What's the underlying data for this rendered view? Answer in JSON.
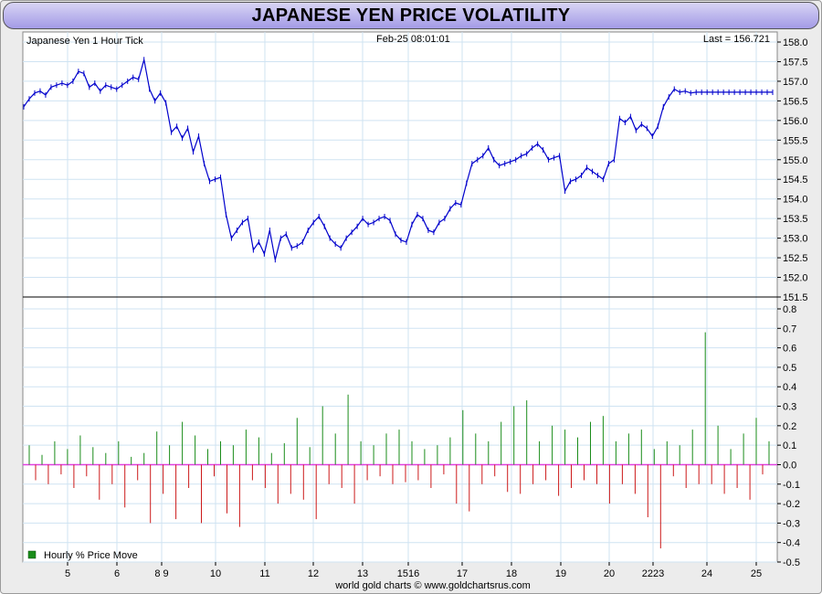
{
  "title": "JAPANESE YEN PRICE VOLATILITY",
  "footer": "world gold charts © www.goldchartsrus.com",
  "colors": {
    "price_line": "#0000cc",
    "up_bar": "#1a8c1a",
    "down_bar": "#cc1a1a",
    "zero_line": "#e040e0",
    "grid": "#cfe3f2",
    "title_bg": "#b0a8ec"
  },
  "chart_data": [
    {
      "type": "line",
      "title": "Japanese Yen 1 Hour Tick",
      "timestamp": "Feb-25  08:01:01",
      "last_label": "Last = 156.721",
      "y_ticks": [
        "158.0",
        "157.5",
        "157.0",
        "156.5",
        "156.0",
        "155.5",
        "155.0",
        "154.5",
        "154.0",
        "153.5",
        "153.0",
        "152.5",
        "152.0",
        "151.5"
      ],
      "ylim": [
        151.5,
        158.0
      ],
      "grid": true,
      "series": [
        {
          "x": [
            0,
            6,
            12,
            18,
            24,
            30,
            36,
            42,
            48,
            54,
            60,
            66,
            72,
            78,
            84,
            90,
            96,
            102,
            108,
            114,
            120,
            126,
            132,
            138,
            144,
            150,
            156,
            162,
            168,
            174,
            180,
            186,
            192,
            198,
            204,
            210,
            216,
            222,
            228,
            234,
            240,
            246,
            252,
            258,
            264,
            270,
            276,
            282,
            288,
            294,
            300,
            306,
            312,
            318,
            324,
            330,
            336,
            342,
            348,
            354,
            360,
            366,
            372,
            378,
            384,
            390,
            396,
            402,
            408,
            414,
            420,
            426,
            432,
            438,
            444,
            450,
            456,
            462,
            468,
            474,
            480,
            486,
            492,
            498,
            504,
            510,
            516,
            522,
            528,
            534,
            540,
            546,
            552,
            558,
            564,
            570,
            576,
            582,
            588,
            594,
            600,
            606,
            612,
            618,
            624,
            630,
            636,
            642,
            648,
            654,
            660,
            666,
            672,
            678,
            684,
            690,
            696,
            702,
            708,
            714,
            720,
            726,
            732,
            738,
            744,
            750,
            756,
            762,
            768,
            774,
            780,
            786,
            792,
            798,
            804,
            810,
            816,
            822
          ],
          "values": [
            156.35,
            156.55,
            156.7,
            156.75,
            156.65,
            156.85,
            156.9,
            156.95,
            156.9,
            157.0,
            157.25,
            157.2,
            156.85,
            156.95,
            156.75,
            156.9,
            156.85,
            156.8,
            156.9,
            157.0,
            157.1,
            157.05,
            157.55,
            156.8,
            156.5,
            156.7,
            156.45,
            155.7,
            155.85,
            155.55,
            155.8,
            155.2,
            155.6,
            154.9,
            154.45,
            154.5,
            154.55,
            153.6,
            153.0,
            153.2,
            153.4,
            153.5,
            152.7,
            152.9,
            152.6,
            153.2,
            152.45,
            153.0,
            153.1,
            152.75,
            152.8,
            152.9,
            153.2,
            153.4,
            153.55,
            153.3,
            153.0,
            152.85,
            152.75,
            153.0,
            153.15,
            153.3,
            153.5,
            153.35,
            153.4,
            153.5,
            153.55,
            153.45,
            153.1,
            152.95,
            152.9,
            153.35,
            153.6,
            153.5,
            153.2,
            153.15,
            153.4,
            153.5,
            153.75,
            153.9,
            153.85,
            154.4,
            154.9,
            155.0,
            155.1,
            155.3,
            155.0,
            154.85,
            154.9,
            154.95,
            155.0,
            155.1,
            155.15,
            155.3,
            155.4,
            155.25,
            155.0,
            155.05,
            155.1,
            154.2,
            154.45,
            154.5,
            154.6,
            154.8,
            154.7,
            154.6,
            154.5,
            154.9,
            155.0,
            156.05,
            155.95,
            156.1,
            155.75,
            155.9,
            155.8,
            155.6,
            155.85,
            156.35,
            156.6,
            156.8,
            156.72,
            156.75,
            156.7,
            156.72,
            156.72,
            156.72,
            156.72,
            156.72,
            156.72,
            156.72,
            156.72,
            156.72,
            156.72,
            156.72,
            156.72,
            156.72,
            156.72,
            156.72
          ]
        }
      ]
    },
    {
      "type": "bar",
      "legend": "Hourly % Price Move",
      "y_ticks": [
        "0.8",
        "0.7",
        "0.6",
        "0.5",
        "0.4",
        "0.3",
        "0.2",
        "0.1",
        "0.0",
        "-0.1",
        "-0.2",
        "-0.3",
        "-0.4",
        "-0.5"
      ],
      "ylim": [
        -0.5,
        0.8
      ],
      "x_labels": [
        "5",
        "6",
        "8 9",
        "10",
        "11",
        "12",
        "13",
        "1516",
        "17",
        "18",
        "19",
        "20",
        "2223",
        "24",
        "25"
      ],
      "values": [
        0.1,
        -0.08,
        0.05,
        -0.1,
        0.12,
        -0.05,
        0.08,
        -0.12,
        0.15,
        -0.06,
        0.09,
        -0.18,
        0.06,
        -0.1,
        0.12,
        -0.22,
        0.04,
        -0.08,
        0.06,
        -0.3,
        0.17,
        -0.15,
        0.1,
        -0.28,
        0.22,
        -0.12,
        0.15,
        -0.3,
        0.08,
        -0.06,
        0.12,
        -0.25,
        0.1,
        -0.32,
        0.18,
        -0.08,
        0.14,
        -0.12,
        0.06,
        -0.2,
        0.11,
        -0.15,
        0.24,
        -0.18,
        0.09,
        -0.28,
        0.3,
        -0.1,
        0.16,
        -0.12,
        0.36,
        -0.2,
        0.12,
        -0.08,
        0.1,
        -0.06,
        0.16,
        -0.1,
        0.18,
        -0.09,
        0.12,
        -0.08,
        0.08,
        -0.12,
        0.1,
        -0.05,
        0.14,
        -0.2,
        0.28,
        -0.24,
        0.16,
        -0.1,
        0.12,
        -0.06,
        0.22,
        -0.14,
        0.3,
        -0.15,
        0.33,
        -0.1,
        0.12,
        -0.08,
        0.2,
        -0.16,
        0.18,
        -0.12,
        0.14,
        -0.08,
        0.22,
        -0.1,
        0.25,
        -0.2,
        0.12,
        -0.1,
        0.16,
        -0.15,
        0.18,
        -0.27,
        0.08,
        -0.43,
        0.12,
        -0.06,
        0.1,
        -0.12,
        0.18,
        -0.1,
        0.68,
        -0.1,
        0.2,
        -0.15,
        0.08,
        -0.12,
        0.16,
        -0.18,
        0.24,
        -0.05,
        0.12
      ]
    }
  ]
}
